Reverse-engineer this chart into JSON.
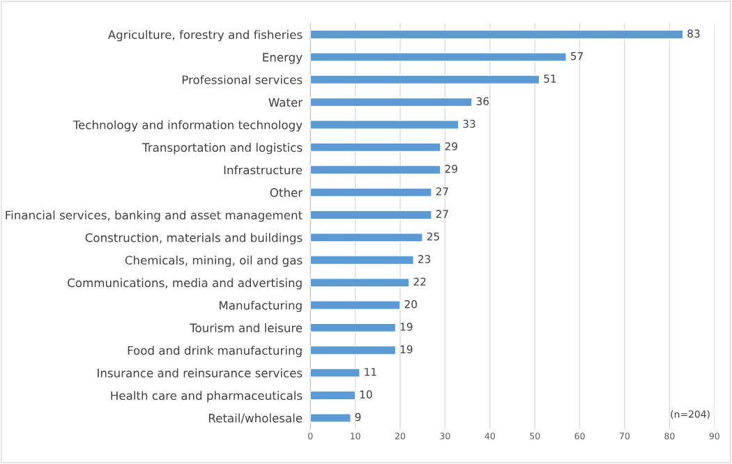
{
  "chart_data": {
    "type": "bar",
    "orientation": "horizontal",
    "categories": [
      "Agriculture, forestry and fisheries",
      "Energy",
      "Professional services",
      "Water",
      "Technology and information technology",
      "Transportation and logistics",
      "Infrastructure",
      "Other",
      "Financial services, banking and asset management",
      "Construction, materials and buildings",
      "Chemicals, mining, oil and gas",
      "Communications, media and advertising",
      "Manufacturing",
      "Tourism and leisure",
      "Food and drink manufacturing",
      "Insurance and reinsurance services",
      "Health care and pharmaceuticals",
      "Retail/wholesale"
    ],
    "values": [
      83,
      57,
      51,
      36,
      33,
      29,
      29,
      27,
      27,
      25,
      23,
      22,
      20,
      19,
      19,
      11,
      10,
      9
    ],
    "color": "#5b9bd5",
    "xlim": [
      0,
      90
    ],
    "xticks": [
      0,
      10,
      20,
      30,
      40,
      50,
      60,
      70,
      80,
      90
    ],
    "grid": "x",
    "data_labels": true,
    "annotations": [
      "(n=204)"
    ]
  }
}
